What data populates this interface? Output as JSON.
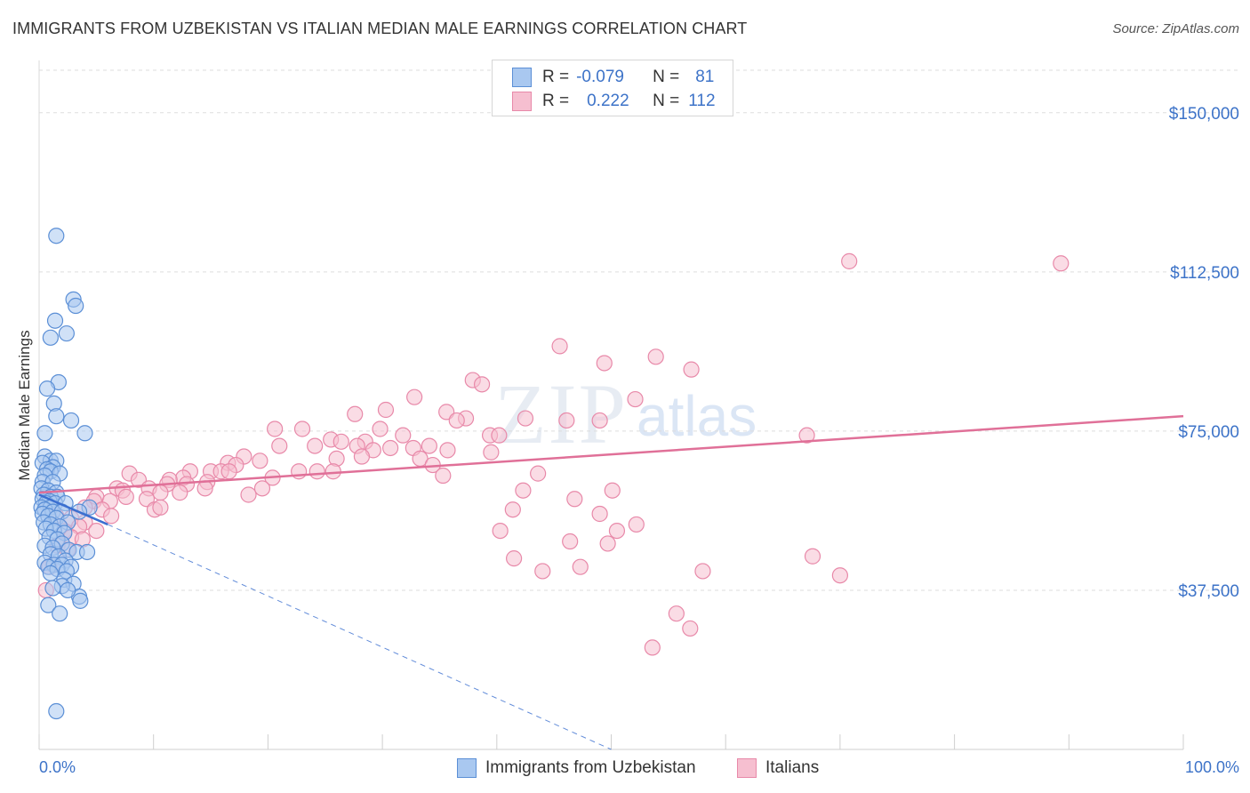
{
  "title": "IMMIGRANTS FROM UZBEKISTAN VS ITALIAN MEDIAN MALE EARNINGS CORRELATION CHART",
  "source": "Source: ZipAtlas.com",
  "watermark": {
    "zip": "ZIP",
    "atlas": "atlas"
  },
  "legend_stats": [
    {
      "r_label": "R =",
      "r_value": "-0.079",
      "n_label": "N =",
      "n_value": "81"
    },
    {
      "r_label": "R =",
      "r_value": "0.222",
      "n_label": "N =",
      "n_value": "112"
    }
  ],
  "colors": {
    "blue_fill": "#a9c8f0",
    "blue_stroke": "#5b8fd6",
    "blue_line": "#3b6fd0",
    "pink_fill": "#f6bfd0",
    "pink_stroke": "#e889a9",
    "pink_line": "#e07098",
    "tick_text": "#3d73c8",
    "grid": "#dddddd"
  },
  "chart_data": {
    "type": "scatter",
    "title": "IMMIGRANTS FROM UZBEKISTAN VS ITALIAN MEDIAN MALE EARNINGS CORRELATION CHART",
    "xlabel": "",
    "ylabel": "Median Male Earnings",
    "xlim": [
      0,
      100
    ],
    "ylim": [
      0,
      160000
    ],
    "x_tick_labels": [
      "0.0%",
      "100.0%"
    ],
    "y_ticks": [
      37500,
      75000,
      112500,
      150000
    ],
    "y_tick_labels": [
      "$37,500",
      "$75,000",
      "$112,500",
      "$150,000"
    ],
    "series": [
      {
        "name": "Immigrants from Uzbekistan",
        "color": "blue",
        "r": -0.079,
        "n": 81,
        "trend": {
          "x0": 0,
          "y0": 60000,
          "x1": 6,
          "y1": 53000,
          "dash_to_x": 50,
          "dash_to_y": 0
        },
        "points": [
          [
            1.5,
            121000
          ],
          [
            3.0,
            106000
          ],
          [
            3.2,
            104500
          ],
          [
            1.4,
            101000
          ],
          [
            2.4,
            98000
          ],
          [
            1.0,
            97000
          ],
          [
            1.7,
            86500
          ],
          [
            0.7,
            85000
          ],
          [
            1.3,
            81500
          ],
          [
            1.5,
            78500
          ],
          [
            2.8,
            77500
          ],
          [
            4.0,
            74500
          ],
          [
            0.5,
            74500
          ],
          [
            0.5,
            69000
          ],
          [
            1.0,
            68000
          ],
          [
            1.5,
            68000
          ],
          [
            0.3,
            67500
          ],
          [
            1.2,
            66500
          ],
          [
            0.7,
            66000
          ],
          [
            1.0,
            65500
          ],
          [
            1.8,
            65000
          ],
          [
            0.5,
            64500
          ],
          [
            0.3,
            63000
          ],
          [
            1.2,
            63000
          ],
          [
            0.2,
            61500
          ],
          [
            0.8,
            61000
          ],
          [
            1.5,
            60500
          ],
          [
            0.4,
            60000
          ],
          [
            1.0,
            59500
          ],
          [
            1.6,
            59500
          ],
          [
            0.3,
            59000
          ],
          [
            0.9,
            58500
          ],
          [
            0.6,
            58000
          ],
          [
            1.4,
            58000
          ],
          [
            2.3,
            58000
          ],
          [
            0.2,
            57000
          ],
          [
            1.0,
            57000
          ],
          [
            0.5,
            56500
          ],
          [
            1.2,
            56000
          ],
          [
            2.0,
            56000
          ],
          [
            4.4,
            57000
          ],
          [
            3.5,
            56000
          ],
          [
            0.3,
            55500
          ],
          [
            0.8,
            55000
          ],
          [
            1.5,
            54500
          ],
          [
            2.5,
            53500
          ],
          [
            0.4,
            53500
          ],
          [
            1.0,
            53000
          ],
          [
            1.8,
            52500
          ],
          [
            0.6,
            52000
          ],
          [
            1.3,
            51500
          ],
          [
            2.2,
            51000
          ],
          [
            0.9,
            50000
          ],
          [
            1.6,
            49500
          ],
          [
            2.0,
            48500
          ],
          [
            0.5,
            48000
          ],
          [
            1.2,
            47500
          ],
          [
            2.6,
            47000
          ],
          [
            3.3,
            46500
          ],
          [
            4.2,
            46500
          ],
          [
            1.0,
            46000
          ],
          [
            1.7,
            45500
          ],
          [
            2.3,
            44500
          ],
          [
            0.5,
            44000
          ],
          [
            1.3,
            43500
          ],
          [
            2.0,
            43500
          ],
          [
            2.8,
            43000
          ],
          [
            0.8,
            43000
          ],
          [
            1.6,
            42500
          ],
          [
            2.4,
            42000
          ],
          [
            1.0,
            41500
          ],
          [
            2.2,
            40000
          ],
          [
            3.0,
            39000
          ],
          [
            2.0,
            38500
          ],
          [
            3.5,
            36000
          ],
          [
            3.6,
            35000
          ],
          [
            0.8,
            34000
          ],
          [
            1.8,
            32000
          ],
          [
            1.5,
            9000
          ],
          [
            1.2,
            38000
          ],
          [
            2.5,
            37500
          ]
        ]
      },
      {
        "name": "Italians",
        "color": "pink",
        "r": 0.222,
        "n": 112,
        "trend": {
          "x0": 0,
          "y0": 60500,
          "x1": 100,
          "y1": 78500
        },
        "points": [
          [
            70.8,
            115000
          ],
          [
            89.3,
            114500
          ],
          [
            45.5,
            95000
          ],
          [
            49.4,
            91000
          ],
          [
            53.9,
            92500
          ],
          [
            57.0,
            89500
          ],
          [
            37.9,
            87000
          ],
          [
            38.7,
            86000
          ],
          [
            32.8,
            83000
          ],
          [
            52.1,
            82500
          ],
          [
            30.3,
            80000
          ],
          [
            35.6,
            79500
          ],
          [
            27.6,
            79000
          ],
          [
            42.5,
            78000
          ],
          [
            37.3,
            78000
          ],
          [
            36.5,
            77500
          ],
          [
            46.1,
            77500
          ],
          [
            49.0,
            77500
          ],
          [
            20.6,
            75500
          ],
          [
            29.8,
            75500
          ],
          [
            23.0,
            75500
          ],
          [
            31.8,
            74000
          ],
          [
            39.4,
            74000
          ],
          [
            40.2,
            74000
          ],
          [
            67.1,
            74000
          ],
          [
            25.5,
            73000
          ],
          [
            26.4,
            72500
          ],
          [
            28.5,
            72500
          ],
          [
            21.0,
            71500
          ],
          [
            24.1,
            71500
          ],
          [
            27.8,
            71500
          ],
          [
            30.7,
            71000
          ],
          [
            32.7,
            71000
          ],
          [
            34.1,
            71500
          ],
          [
            29.2,
            70500
          ],
          [
            35.7,
            70500
          ],
          [
            39.5,
            70000
          ],
          [
            28.2,
            69000
          ],
          [
            17.9,
            69000
          ],
          [
            19.3,
            68000
          ],
          [
            16.5,
            67500
          ],
          [
            33.3,
            68500
          ],
          [
            26.0,
            68500
          ],
          [
            17.2,
            67000
          ],
          [
            34.4,
            67000
          ],
          [
            13.2,
            65500
          ],
          [
            15.0,
            65500
          ],
          [
            15.9,
            65500
          ],
          [
            16.6,
            65500
          ],
          [
            22.7,
            65500
          ],
          [
            24.3,
            65500
          ],
          [
            25.7,
            65500
          ],
          [
            7.9,
            65000
          ],
          [
            12.6,
            64000
          ],
          [
            8.7,
            63500
          ],
          [
            11.4,
            63500
          ],
          [
            20.4,
            64000
          ],
          [
            14.7,
            63000
          ],
          [
            35.3,
            64500
          ],
          [
            43.6,
            65000
          ],
          [
            11.2,
            62500
          ],
          [
            12.9,
            62500
          ],
          [
            6.8,
            61500
          ],
          [
            9.6,
            61500
          ],
          [
            14.5,
            61500
          ],
          [
            19.5,
            61500
          ],
          [
            7.3,
            61000
          ],
          [
            10.6,
            60500
          ],
          [
            12.3,
            60500
          ],
          [
            18.3,
            60000
          ],
          [
            5.0,
            59500
          ],
          [
            7.6,
            59500
          ],
          [
            9.4,
            59000
          ],
          [
            4.8,
            58500
          ],
          [
            6.2,
            58500
          ],
          [
            46.8,
            59000
          ],
          [
            42.3,
            61000
          ],
          [
            50.1,
            61000
          ],
          [
            4.0,
            57000
          ],
          [
            5.5,
            56500
          ],
          [
            10.1,
            56500
          ],
          [
            10.6,
            57000
          ],
          [
            41.4,
            56500
          ],
          [
            49.0,
            55500
          ],
          [
            52.2,
            53000
          ],
          [
            1.5,
            55000
          ],
          [
            2.8,
            54500
          ],
          [
            4.0,
            53500
          ],
          [
            6.3,
            55000
          ],
          [
            3.5,
            52500
          ],
          [
            5.0,
            51500
          ],
          [
            2.2,
            51500
          ],
          [
            40.3,
            51500
          ],
          [
            50.5,
            51500
          ],
          [
            2.8,
            50000
          ],
          [
            3.8,
            49500
          ],
          [
            46.4,
            49000
          ],
          [
            49.7,
            48500
          ],
          [
            1.6,
            48000
          ],
          [
            2.5,
            47000
          ],
          [
            41.5,
            45000
          ],
          [
            44.0,
            42000
          ],
          [
            47.3,
            43000
          ],
          [
            58.0,
            42000
          ],
          [
            67.6,
            45500
          ],
          [
            70.0,
            41000
          ],
          [
            1.2,
            43500
          ],
          [
            0.9,
            43000
          ],
          [
            0.6,
            37500
          ],
          [
            55.7,
            32000
          ],
          [
            56.9,
            28500
          ],
          [
            53.6,
            24000
          ]
        ]
      }
    ]
  },
  "bottom_legend": [
    {
      "label": "Immigrants from Uzbekistan",
      "color": "blue"
    },
    {
      "label": "Italians",
      "color": "pink"
    }
  ]
}
